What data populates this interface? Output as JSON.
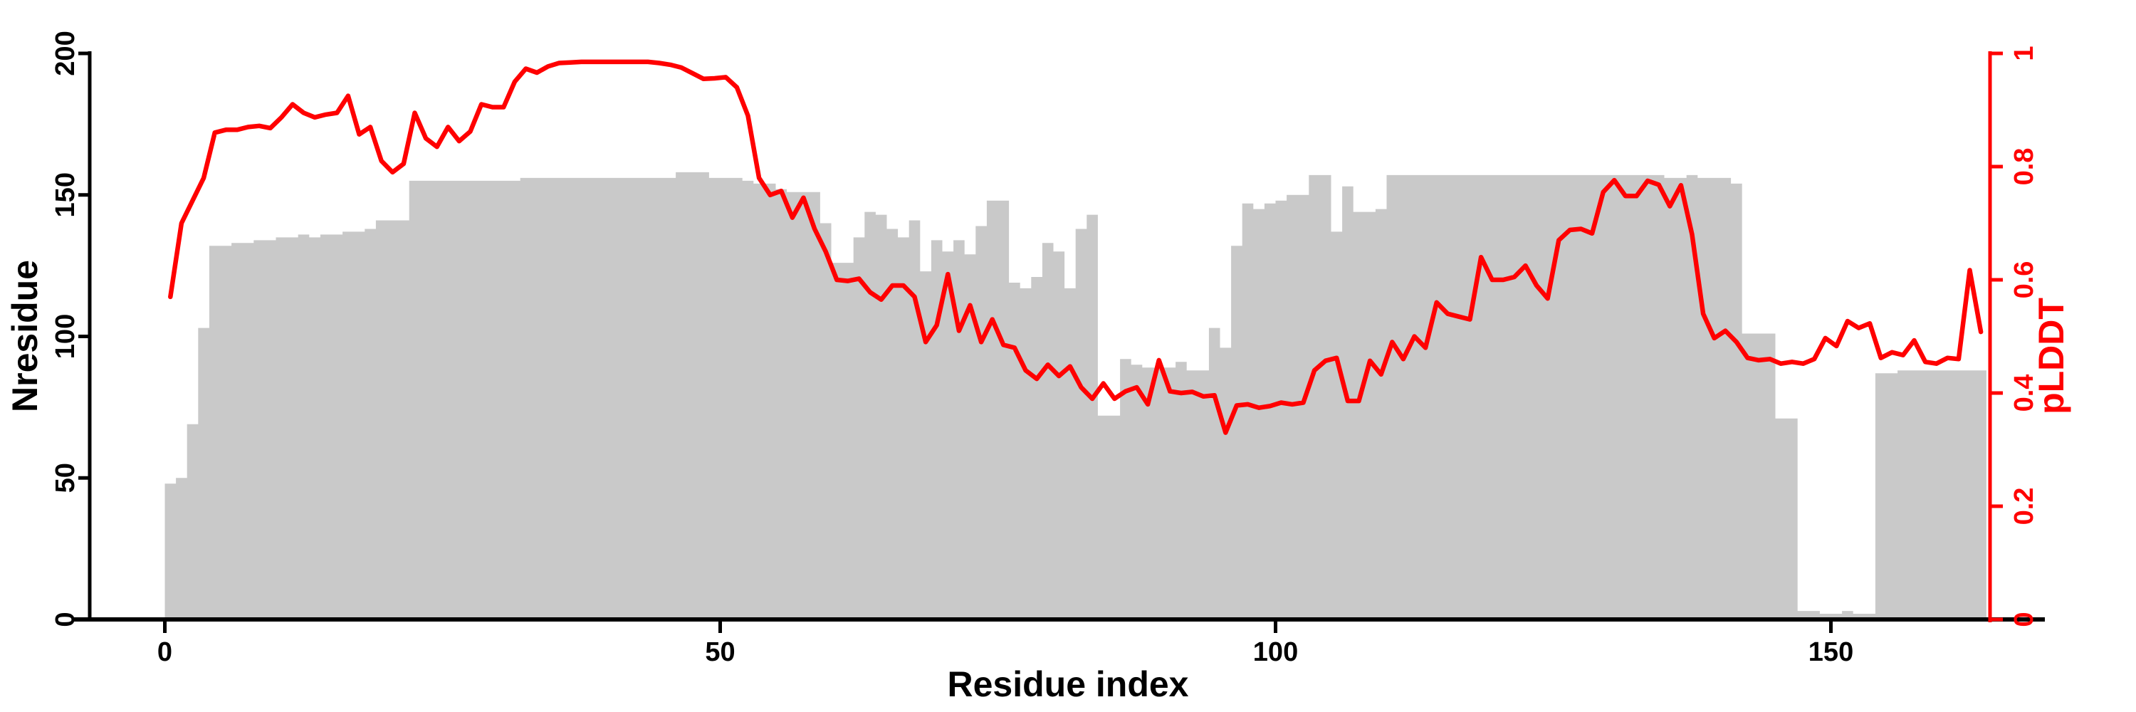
{
  "figure": {
    "background": "#ffffff",
    "bar_color": "#c9c9c9",
    "line_color": "#ff0000",
    "axis_color": "#000000"
  },
  "left_axis": {
    "title": "Nresidue",
    "tick_values": [
      0,
      50,
      100,
      150,
      200
    ],
    "tick_labels": [
      "0",
      "50",
      "100",
      "150",
      "200"
    ],
    "range": [
      0,
      200
    ]
  },
  "bottom_axis": {
    "title": "Residue index",
    "tick_values": [
      0,
      50,
      100,
      150
    ],
    "tick_labels": [
      "0",
      "50",
      "100",
      "150"
    ]
  },
  "right_axis": {
    "title": "pLDDT",
    "tick_values": [
      0,
      0.2,
      0.4,
      0.6,
      0.8,
      1
    ],
    "tick_labels": [
      "0",
      "0.2",
      "0.4",
      "0.6",
      "0.8",
      "1"
    ],
    "range": [
      0,
      1
    ],
    "color": "#ff0000"
  },
  "chart_data": {
    "type": "bar",
    "subtype": "bar-with-line-overlay",
    "xlabel": "Residue index",
    "ylabel_left": "Nresidue",
    "ylabel_right": "pLDDT",
    "x_start": 0,
    "x_step": 1,
    "xlim": [
      0,
      170
    ],
    "ylim_left": [
      0,
      200
    ],
    "ylim_right": [
      0,
      1
    ],
    "grid": false,
    "legend": "none",
    "series": [
      {
        "name": "Nresidue",
        "type": "bar",
        "axis": "left",
        "color": "#c9c9c9",
        "values": [
          48,
          50,
          69,
          103,
          132,
          132,
          133,
          133,
          134,
          134,
          135,
          135,
          136,
          135,
          136,
          136,
          137,
          137,
          138,
          141,
          141,
          141,
          155,
          155,
          155,
          155,
          155,
          155,
          155,
          155,
          155,
          155,
          156,
          156,
          156,
          156,
          156,
          156,
          156,
          156,
          156,
          156,
          156,
          156,
          156,
          156,
          158,
          158,
          158,
          156,
          156,
          156,
          155,
          154,
          154,
          152,
          151,
          151,
          151,
          140,
          126,
          126,
          135,
          144,
          143,
          138,
          135,
          141,
          123,
          134,
          130,
          134,
          129,
          139,
          148,
          148,
          119,
          117,
          121,
          133,
          130,
          117,
          138,
          143,
          72,
          72,
          92,
          90,
          89,
          89,
          89,
          91,
          88,
          88,
          103,
          96,
          132,
          147,
          145,
          147,
          148,
          150,
          150,
          157,
          157,
          137,
          153,
          144,
          144,
          145,
          157,
          157,
          157,
          157,
          157,
          157,
          157,
          157,
          157,
          157,
          157,
          157,
          157,
          157,
          157,
          157,
          157,
          157,
          157,
          157,
          157,
          157,
          157,
          157,
          157,
          156,
          156,
          157,
          156,
          156,
          156,
          154,
          101,
          101,
          101,
          71,
          71,
          3,
          3,
          2,
          2,
          3,
          2,
          2,
          87,
          87,
          88,
          88,
          88,
          88,
          88,
          88,
          88,
          88
        ]
      },
      {
        "name": "pLDDT",
        "type": "line",
        "axis": "right",
        "color": "#ff0000",
        "values": [
          0.57,
          0.7,
          0.74,
          0.78,
          0.86,
          0.865,
          0.865,
          0.87,
          0.872,
          0.868,
          0.887,
          0.91,
          0.895,
          0.887,
          0.892,
          0.895,
          0.925,
          0.857,
          0.87,
          0.81,
          0.79,
          0.805,
          0.895,
          0.85,
          0.835,
          0.87,
          0.845,
          0.862,
          0.91,
          0.905,
          0.905,
          0.95,
          0.973,
          0.966,
          0.977,
          0.983,
          0.984,
          0.985,
          0.985,
          0.985,
          0.985,
          0.985,
          0.985,
          0.985,
          0.983,
          0.98,
          0.975,
          0.965,
          0.955,
          0.956,
          0.958,
          0.94,
          0.89,
          0.78,
          0.75,
          0.757,
          0.71,
          0.745,
          0.69,
          0.65,
          0.6,
          0.598,
          0.602,
          0.578,
          0.565,
          0.59,
          0.59,
          0.57,
          0.49,
          0.52,
          0.61,
          0.51,
          0.555,
          0.49,
          0.53,
          0.485,
          0.48,
          0.44,
          0.425,
          0.45,
          0.43,
          0.447,
          0.41,
          0.39,
          0.417,
          0.39,
          0.403,
          0.41,
          0.38,
          0.458,
          0.403,
          0.4,
          0.402,
          0.394,
          0.396,
          0.33,
          0.378,
          0.38,
          0.374,
          0.377,
          0.383,
          0.38,
          0.383,
          0.44,
          0.457,
          0.462,
          0.386,
          0.386,
          0.457,
          0.433,
          0.49,
          0.46,
          0.5,
          0.48,
          0.56,
          0.54,
          0.535,
          0.53,
          0.64,
          0.6,
          0.6,
          0.605,
          0.625,
          0.59,
          0.567,
          0.67,
          0.688,
          0.69,
          0.682,
          0.755,
          0.776,
          0.748,
          0.748,
          0.775,
          0.768,
          0.73,
          0.767,
          0.68,
          0.54,
          0.497,
          0.51,
          0.49,
          0.462,
          0.458,
          0.46,
          0.452,
          0.455,
          0.452,
          0.46,
          0.497,
          0.483,
          0.527,
          0.515,
          0.523,
          0.462,
          0.472,
          0.467,
          0.493,
          0.455,
          0.452,
          0.462,
          0.46,
          0.617,
          0.508
        ]
      }
    ]
  }
}
